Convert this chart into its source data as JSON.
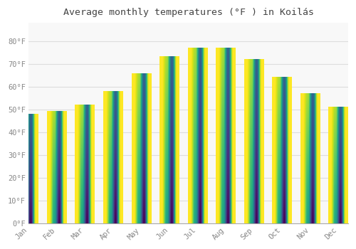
{
  "title": "Average monthly temperatures (°F ) in Koilás",
  "months": [
    "Jan",
    "Feb",
    "Mar",
    "Apr",
    "May",
    "Jun",
    "Jul",
    "Aug",
    "Sep",
    "Oct",
    "Nov",
    "Dec"
  ],
  "values": [
    48,
    49,
    52,
    58,
    65.5,
    73,
    77,
    77,
    72,
    64,
    57,
    51
  ],
  "bar_color_top": "#FFA500",
  "bar_color_bottom": "#FFD070",
  "background_color": "#FFFFFF",
  "plot_bg_color": "#F8F8F8",
  "grid_color": "#DDDDDD",
  "ylim": [
    0,
    88
  ],
  "yticks": [
    0,
    10,
    20,
    30,
    40,
    50,
    60,
    70,
    80
  ],
  "title_fontsize": 9.5,
  "tick_fontsize": 7.5,
  "tick_color": "#888888",
  "title_color": "#444444",
  "bar_width": 0.7
}
